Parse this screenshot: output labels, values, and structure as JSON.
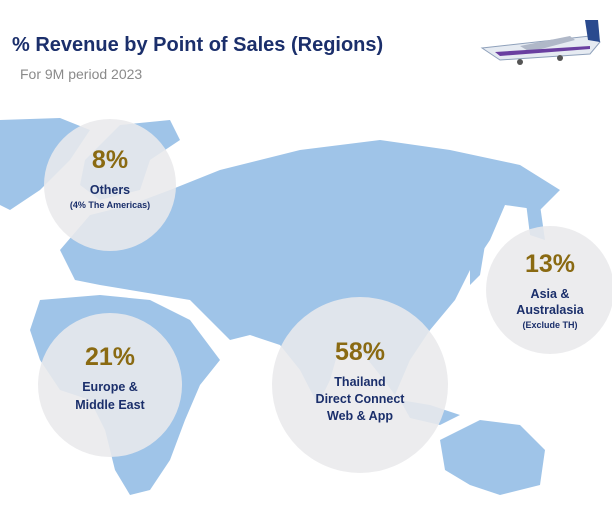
{
  "header": {
    "title": "% Revenue by Point of Sales (Regions)",
    "subtitle": "For 9M period 2023"
  },
  "regions": [
    {
      "percent": "8%",
      "lines": [
        "Others",
        "(4% The Americas)"
      ]
    },
    {
      "percent": "21%",
      "lines": [
        "Europe &",
        "Middle East"
      ]
    },
    {
      "percent": "58%",
      "lines": [
        "Thailand",
        "Direct Connect",
        "Web & App"
      ]
    },
    {
      "percent": "13%",
      "lines": [
        "Asia &",
        "Australasia",
        "(Exclude TH)"
      ]
    }
  ]
}
